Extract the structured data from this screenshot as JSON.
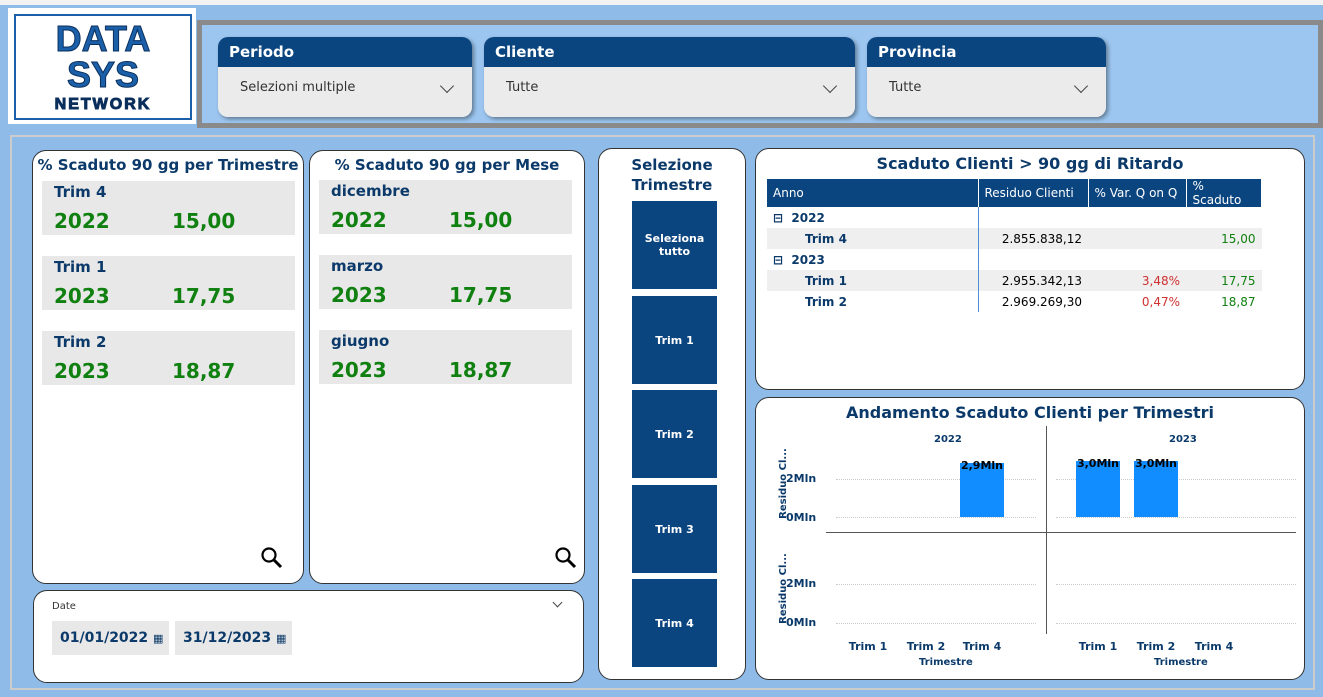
{
  "logo": {
    "text_line1": "DATA",
    "text_line2": "SYS",
    "text_line3": "NETWORK"
  },
  "filters": [
    {
      "label": "Periodo",
      "value": "Selezioni multiple"
    },
    {
      "label": "Cliente",
      "value": "Tutte"
    },
    {
      "label": "Provincia",
      "value": "Tutte"
    }
  ],
  "card_trimestre": {
    "title": "% Scaduto 90 gg per Trimestre",
    "items": [
      {
        "label": "Trim 4",
        "year": "2022",
        "value": "15,00"
      },
      {
        "label": "Trim 1",
        "year": "2023",
        "value": "17,75"
      },
      {
        "label": "Trim 2",
        "year": "2023",
        "value": "18,87"
      }
    ]
  },
  "card_mese": {
    "title": "% Scaduto 90 gg per Mese",
    "items": [
      {
        "label": "dicembre",
        "year": "2022",
        "value": "15,00"
      },
      {
        "label": "marzo",
        "year": "2023",
        "value": "17,75"
      },
      {
        "label": "giugno",
        "year": "2023",
        "value": "18,87"
      }
    ]
  },
  "date_slicer": {
    "label": "Date",
    "start": "01/01/2022",
    "end": "31/12/2023"
  },
  "selection": {
    "title": "Selezione Trimestre",
    "buttons": [
      "Seleziona tutto",
      "Trim 1",
      "Trim 2",
      "Trim 3",
      "Trim 4"
    ]
  },
  "table": {
    "title": "Scaduto Clienti > 90 gg di Ritardo",
    "columns": [
      "Anno",
      "Residuo Clienti",
      "% Var. Q on Q",
      "% Scaduto"
    ],
    "groups": [
      {
        "year": "2022",
        "rows": [
          {
            "label": "Trim 4",
            "residuo": "2.855.838,12",
            "var": "",
            "scaduto": "15,00"
          }
        ]
      },
      {
        "year": "2023",
        "rows": [
          {
            "label": "Trim 1",
            "residuo": "2.955.342,13",
            "var": "3,48%",
            "scaduto": "17,75"
          },
          {
            "label": "Trim 2",
            "residuo": "2.969.269,30",
            "var": "0,47%",
            "scaduto": "18,87"
          }
        ]
      }
    ]
  },
  "chart_data": {
    "type": "bar",
    "title": "Andamento Scaduto Clienti per Trimestri",
    "xlabel": "Trimestre",
    "ylabel": "Residuo Cl...",
    "panels": [
      "2022",
      "2023"
    ],
    "categories": [
      [
        "Trim 1",
        "Trim 2",
        "Trim 4"
      ],
      [
        "Trim 1",
        "Trim 2",
        "Trim 4"
      ]
    ],
    "values": [
      [
        null,
        null,
        2855838.12
      ],
      [
        2955342.13,
        2969269.3,
        null
      ]
    ],
    "data_labels": [
      [
        "",
        "",
        "2,9Mln"
      ],
      [
        "3,0Mln",
        "3,0Mln",
        ""
      ]
    ],
    "yticks": [
      "0Mln",
      "2Mln"
    ],
    "ylim": [
      0,
      3000000
    ],
    "bar_color": "#118dff"
  }
}
